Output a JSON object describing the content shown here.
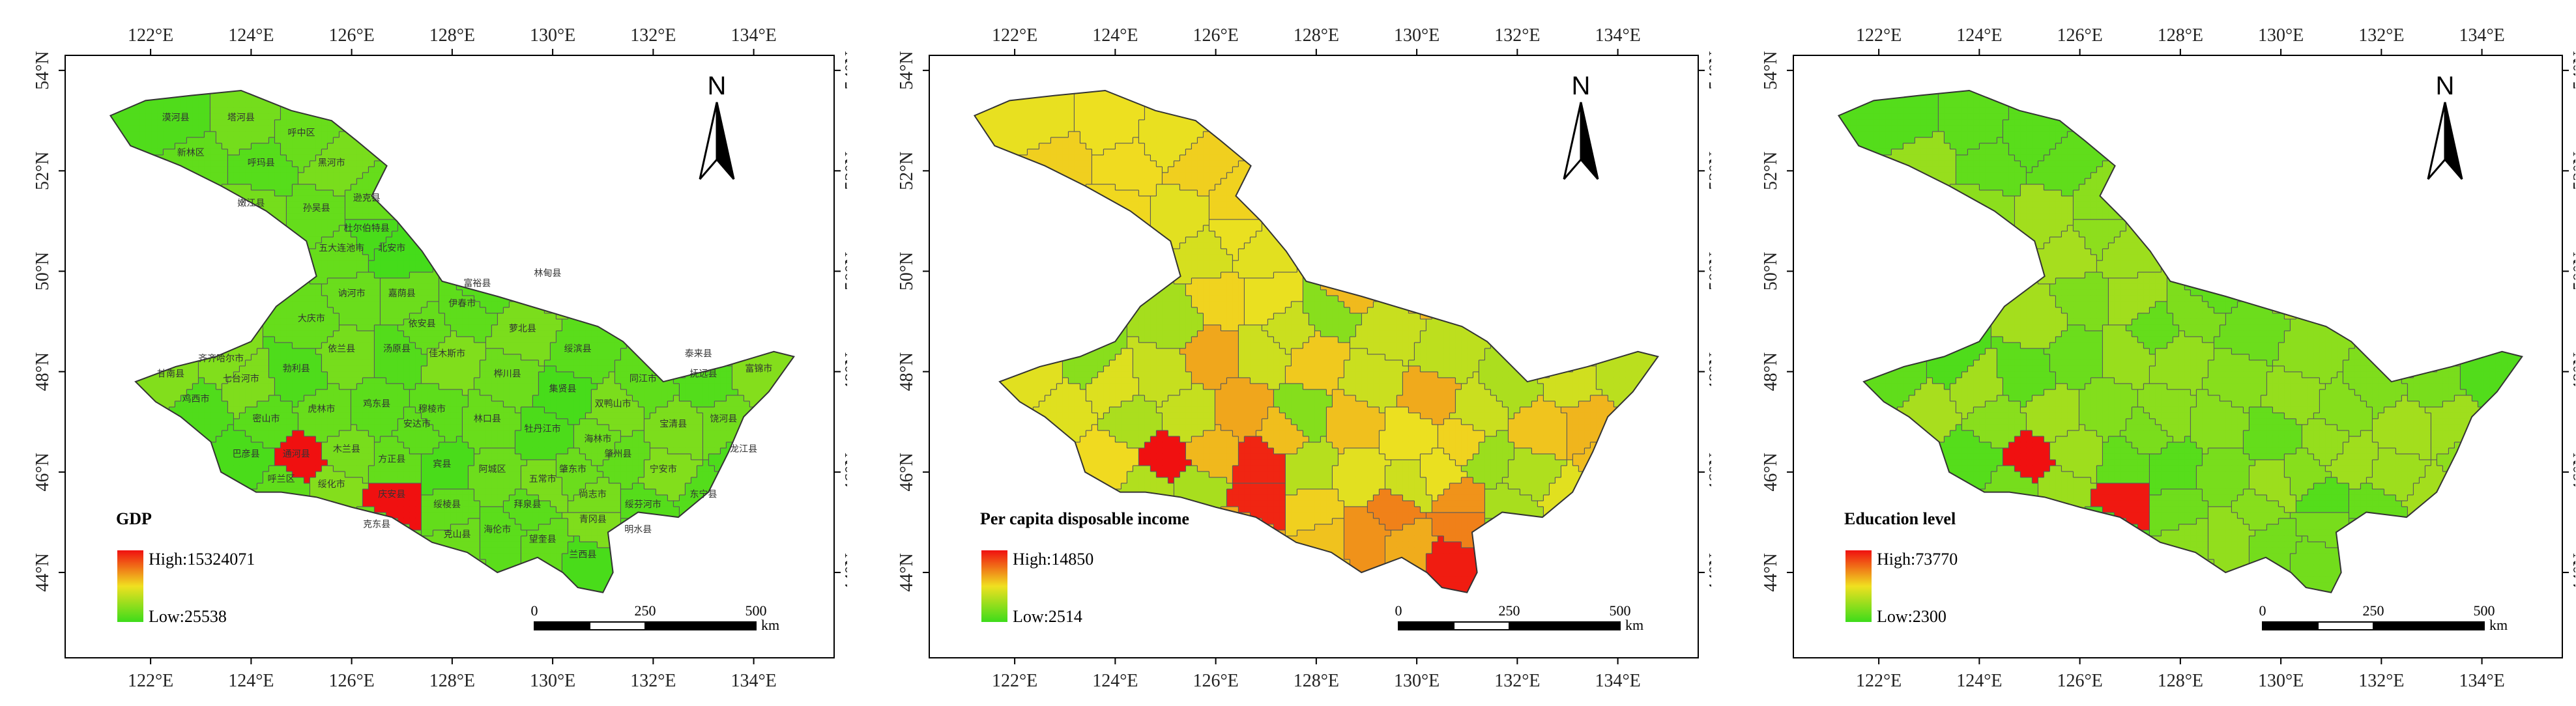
{
  "axes": {
    "lon_labels": [
      "122°E",
      "124°E",
      "126°E",
      "128°E",
      "130°E",
      "132°E",
      "134°E"
    ],
    "lat_labels": [
      "54°N",
      "52°N",
      "50°N",
      "48°N",
      "46°N",
      "44°N"
    ]
  },
  "colors": {
    "low": "#3ddc1a",
    "mid": "#f0e020",
    "high": "#f01010",
    "border": "#333333"
  },
  "panels": [
    {
      "id": "gdp",
      "legend_title": "GDP",
      "legend_high": "High:15324071",
      "legend_low": "Low:25538",
      "has_county_labels": true
    },
    {
      "id": "income",
      "legend_title": "Per capita disposable income",
      "legend_high": "High:14850",
      "legend_low": "Low:2514",
      "has_county_labels": false
    },
    {
      "id": "education",
      "legend_title": "Education level",
      "legend_high": "High:73770",
      "legend_low": "Low:2300",
      "has_county_labels": false
    }
  ],
  "north_arrow": {
    "label": "N"
  },
  "scale_bar": {
    "ticks": [
      "0",
      "250",
      "500"
    ],
    "unit": "km"
  },
  "county_labels": [
    "漠河县",
    "塔河县",
    "呼中区",
    "新林区",
    "呼玛县",
    "黑河市",
    "嫩江县",
    "孙吴县",
    "逊克县",
    "五大连池市",
    "北安市",
    "讷河市",
    "嘉荫县",
    "伊春市",
    "萝北县",
    "绥滨县",
    "同江市",
    "抚远县",
    "富锦市",
    "饶河县",
    "宝清县",
    "双鸭山市",
    "集贤县",
    "桦川县",
    "佳木斯市",
    "汤原县",
    "依兰县",
    "勃利县",
    "七台河市",
    "鸡西市",
    "密山市",
    "虎林市",
    "鸡东县",
    "穆棱市",
    "林口县",
    "牡丹江市",
    "海林市",
    "宁安市",
    "东宁县",
    "绥芬河市",
    "尚志市",
    "五常市",
    "阿城区",
    "宾县",
    "方正县",
    "木兰县",
    "通河县",
    "巴彦县",
    "呼兰区",
    "绥化市",
    "庆安县",
    "绥棱县",
    "海伦市",
    "望奎县",
    "兰西县",
    "青冈县",
    "明水县",
    "拜泉县",
    "克山县",
    "克东县",
    "依安县",
    "富裕县",
    "齐齐哈尔市",
    "甘南县",
    "龙江县",
    "泰来县",
    "杜尔伯特县",
    "林甸县",
    "大庆市",
    "安达市",
    "肇东市",
    "肇州县",
    "肇源县",
    "双城区",
    "铁力市",
    "延寿县",
    "桦南县",
    "友谊县",
    "宁安县"
  ]
}
